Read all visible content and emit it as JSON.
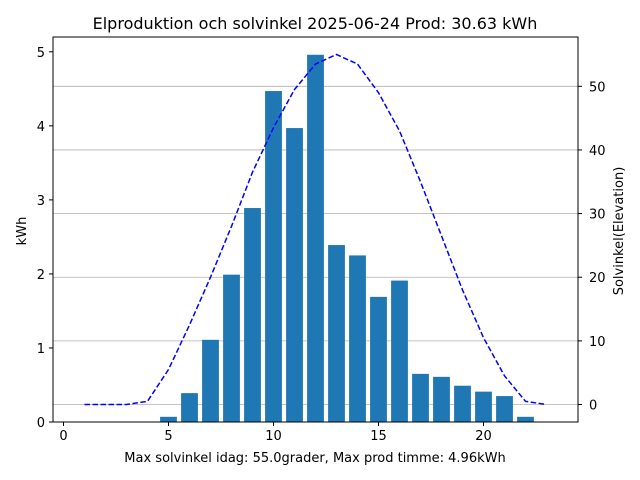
{
  "chart_data": {
    "type": "bar",
    "title": "Elproduktion och solvinkel 2025-06-24 Prod: 30.63 kWh",
    "xlabel": "Max solvinkel idag: 55.0grader, Max prod timme: 4.96kWh",
    "ylabel": "kWh",
    "y2label": "Solvinkel(Elevation)",
    "xlim": [
      -0.5,
      24.5
    ],
    "ylim": [
      0,
      5.2
    ],
    "y2lim": [
      -2.75,
      57.75
    ],
    "xticks": [
      0,
      5,
      10,
      15,
      20
    ],
    "yticks": [
      0,
      1,
      2,
      3,
      4,
      5
    ],
    "y2ticks": [
      0,
      10,
      20,
      30,
      40,
      50
    ],
    "bar_color": "#1f77b4",
    "line_color": "#0000ff",
    "grid": "horizontal lines at right-axis ticks",
    "bars": {
      "x": [
        5,
        6,
        7,
        8,
        9,
        10,
        11,
        12,
        13,
        14,
        15,
        16,
        17,
        18,
        19,
        20,
        21,
        22
      ],
      "values": [
        0.07,
        0.39,
        1.11,
        1.99,
        2.89,
        4.47,
        3.97,
        4.96,
        2.39,
        2.25,
        1.69,
        1.91,
        0.65,
        0.61,
        0.49,
        0.41,
        0.35,
        0.07
      ]
    },
    "elevation": {
      "x": [
        1,
        2,
        3,
        4,
        5,
        6,
        7,
        8,
        9,
        10,
        11,
        12,
        13,
        14,
        15,
        16,
        17,
        18,
        19,
        20,
        21,
        22,
        23
      ],
      "values": [
        0,
        0,
        0,
        0.5,
        5.5,
        12.5,
        20.0,
        28.0,
        36.5,
        43.5,
        49.5,
        53.5,
        55.0,
        53.5,
        49.0,
        43.0,
        35.0,
        26.5,
        18.0,
        10.5,
        4.5,
        0.5,
        0
      ]
    }
  }
}
